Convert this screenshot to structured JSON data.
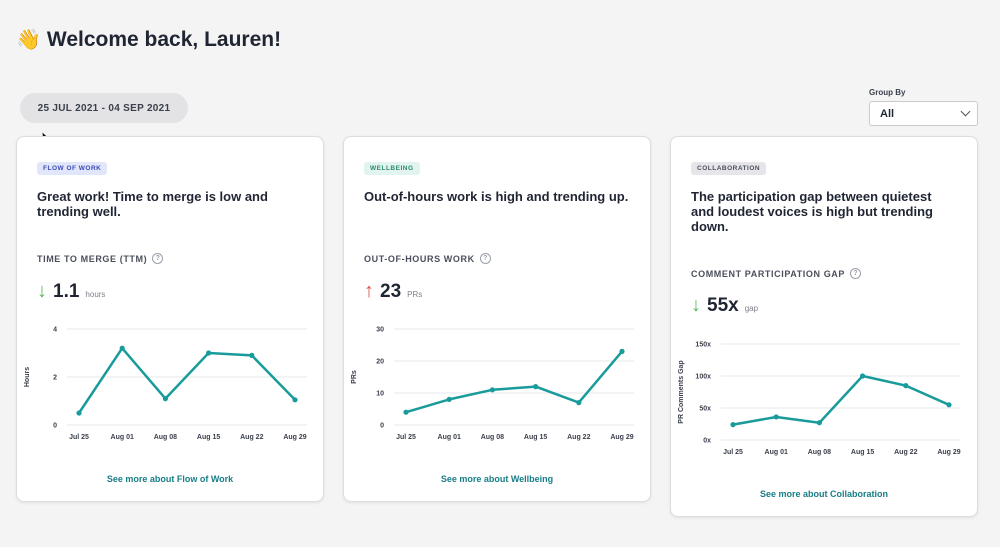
{
  "header": {
    "wave_emoji": "👋",
    "title": "Welcome back, Lauren!"
  },
  "date_range": "25 JUL 2021 - 04 SEP 2021",
  "group_by": {
    "label": "Group By",
    "value": "All"
  },
  "colors": {
    "line": "#1a9b9b",
    "down_arrow": "#5cb85c",
    "up_arrow": "#d9534f",
    "link": "#177e86"
  },
  "cards": [
    {
      "badge": "FLOW OF WORK",
      "badge_bg": "#e2e6fb",
      "badge_color": "#3b4cb8",
      "headline": "Great work! Time to merge is low and trending well.",
      "metric_label": "TIME TO MERGE (TTM)",
      "help_icon": "?",
      "arrow": "↓",
      "arrow_dir": "down",
      "value": "1.1",
      "unit": "hours",
      "link": "See more about Flow of Work"
    },
    {
      "badge": "WELLBEING",
      "badge_bg": "#e1f4ef",
      "badge_color": "#2b8a6e",
      "headline": "Out-of-hours work is high and trending up.",
      "metric_label": "OUT-OF-HOURS WORK",
      "help_icon": "?",
      "arrow": "↑",
      "arrow_dir": "up",
      "value": "23",
      "unit": "PRs",
      "link": "See more about Wellbeing"
    },
    {
      "badge": "COLLABORATION",
      "badge_bg": "#e6e6ea",
      "badge_color": "#4a4f5b",
      "headline": "The participation gap between quietest and loudest voices is high but trending down.",
      "metric_label": "COMMENT PARTICIPATION GAP",
      "help_icon": "?",
      "arrow": "↓",
      "arrow_dir": "down",
      "value": "55x",
      "unit": "gap",
      "link": "See more about Collaboration"
    }
  ],
  "chart_data": [
    {
      "type": "line",
      "categories": [
        "Jul 25",
        "Aug 01",
        "Aug 08",
        "Aug 15",
        "Aug 22",
        "Aug 29"
      ],
      "series": [
        {
          "values": [
            0.5,
            3.2,
            1.1,
            3.0,
            2.9,
            1.05
          ]
        }
      ],
      "ylabel": "Hours",
      "ylim": [
        0,
        4
      ],
      "yticks": [
        "0",
        "2",
        "4"
      ],
      "ytick_values": [
        0,
        2,
        4
      ],
      "grid": true
    },
    {
      "type": "line",
      "categories": [
        "Jul 25",
        "Aug 01",
        "Aug 08",
        "Aug 15",
        "Aug 22",
        "Aug 29"
      ],
      "series": [
        {
          "values": [
            4,
            8,
            11,
            12,
            7,
            23
          ]
        }
      ],
      "ylabel": "PRs",
      "ylim": [
        0,
        30
      ],
      "yticks": [
        "0",
        "10",
        "20",
        "30"
      ],
      "ytick_values": [
        0,
        10,
        20,
        30
      ],
      "grid": true
    },
    {
      "type": "line",
      "categories": [
        "Jul 25",
        "Aug 01",
        "Aug 08",
        "Aug 15",
        "Aug 22",
        "Aug 29"
      ],
      "series": [
        {
          "values": [
            24,
            36,
            27,
            100,
            85,
            55
          ]
        }
      ],
      "ylabel": "PR Comments Gap",
      "ylim": [
        0,
        150
      ],
      "yticks": [
        "0x",
        "50x",
        "100x",
        "150x"
      ],
      "ytick_values": [
        0,
        50,
        100,
        150
      ],
      "grid": true
    }
  ]
}
